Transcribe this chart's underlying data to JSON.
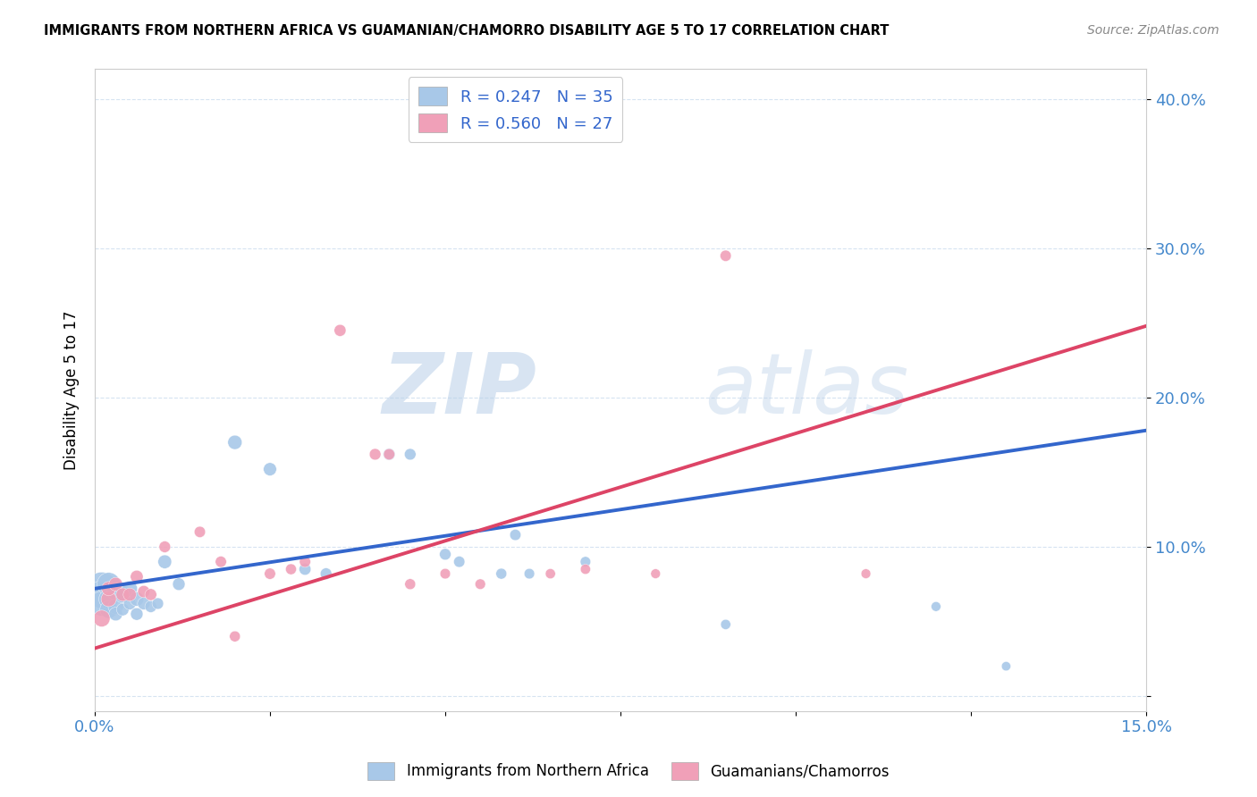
{
  "title": "IMMIGRANTS FROM NORTHERN AFRICA VS GUAMANIAN/CHAMORRO DISABILITY AGE 5 TO 17 CORRELATION CHART",
  "source": "Source: ZipAtlas.com",
  "ylabel": "Disability Age 5 to 17",
  "xlim": [
    0.0,
    0.15
  ],
  "ylim": [
    -0.01,
    0.42
  ],
  "blue_R": 0.247,
  "blue_N": 35,
  "pink_R": 0.56,
  "pink_N": 27,
  "blue_color": "#a8c8e8",
  "pink_color": "#f0a0b8",
  "blue_line_color": "#3366cc",
  "pink_line_color": "#dd4466",
  "legend_label_blue": "Immigrants from Northern Africa",
  "legend_label_pink": "Guamanians/Chamorros",
  "watermark_zip": "ZIP",
  "watermark_atlas": "atlas",
  "blue_line_x": [
    0.0,
    0.15
  ],
  "blue_line_y": [
    0.072,
    0.178
  ],
  "pink_line_x": [
    0.0,
    0.15
  ],
  "pink_line_y": [
    0.032,
    0.248
  ],
  "blue_scatter_x": [
    0.001,
    0.001,
    0.001,
    0.002,
    0.002,
    0.002,
    0.003,
    0.003,
    0.003,
    0.004,
    0.004,
    0.005,
    0.005,
    0.006,
    0.006,
    0.007,
    0.008,
    0.009,
    0.01,
    0.012,
    0.02,
    0.025,
    0.03,
    0.033,
    0.042,
    0.045,
    0.05,
    0.052,
    0.058,
    0.06,
    0.062,
    0.07,
    0.09,
    0.12,
    0.13
  ],
  "blue_scatter_y": [
    0.072,
    0.068,
    0.062,
    0.075,
    0.065,
    0.058,
    0.07,
    0.06,
    0.055,
    0.068,
    0.058,
    0.072,
    0.062,
    0.065,
    0.055,
    0.062,
    0.06,
    0.062,
    0.09,
    0.075,
    0.17,
    0.152,
    0.085,
    0.082,
    0.162,
    0.162,
    0.095,
    0.09,
    0.082,
    0.108,
    0.082,
    0.09,
    0.048,
    0.06,
    0.02
  ],
  "blue_scatter_size": [
    700,
    500,
    400,
    350,
    250,
    200,
    200,
    150,
    120,
    180,
    100,
    150,
    100,
    130,
    100,
    100,
    90,
    85,
    120,
    100,
    130,
    110,
    90,
    85,
    90,
    85,
    85,
    80,
    75,
    80,
    70,
    70,
    65,
    60,
    55
  ],
  "pink_scatter_x": [
    0.001,
    0.002,
    0.002,
    0.003,
    0.004,
    0.005,
    0.006,
    0.007,
    0.008,
    0.01,
    0.015,
    0.018,
    0.02,
    0.025,
    0.028,
    0.03,
    0.035,
    0.04,
    0.042,
    0.045,
    0.05,
    0.055,
    0.065,
    0.07,
    0.08,
    0.09,
    0.11
  ],
  "pink_scatter_y": [
    0.052,
    0.065,
    0.072,
    0.075,
    0.068,
    0.068,
    0.08,
    0.07,
    0.068,
    0.1,
    0.11,
    0.09,
    0.04,
    0.082,
    0.085,
    0.09,
    0.245,
    0.162,
    0.162,
    0.075,
    0.082,
    0.075,
    0.082,
    0.085,
    0.082,
    0.295,
    0.082
  ],
  "pink_scatter_size": [
    180,
    150,
    130,
    120,
    115,
    110,
    105,
    95,
    90,
    85,
    80,
    80,
    75,
    80,
    75,
    80,
    90,
    85,
    80,
    75,
    70,
    70,
    65,
    65,
    60,
    80,
    60
  ]
}
